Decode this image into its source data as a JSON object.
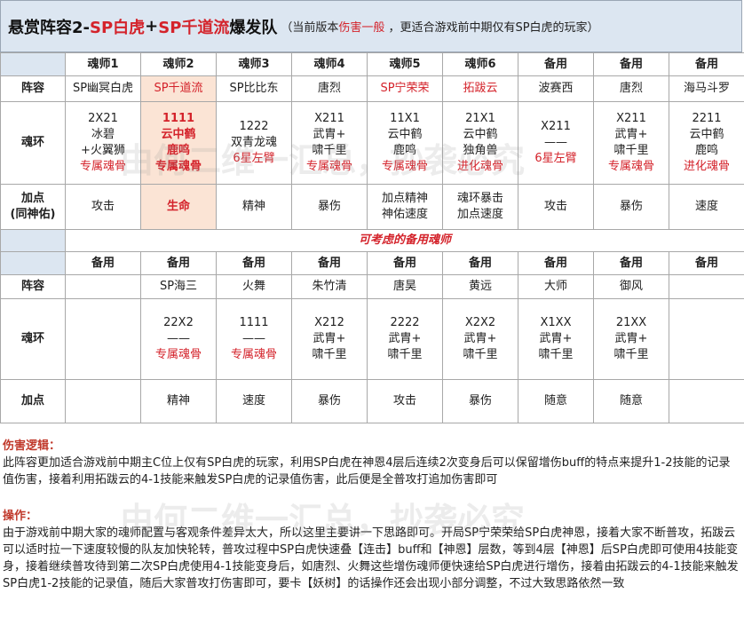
{
  "title": {
    "prefix": "悬赏阵容2-",
    "red1": "SP白虎",
    "plus": "+",
    "red2": "SP千道流",
    "suffix": "爆发队",
    "note_start": "（当前版本",
    "note_red": "伤害一般",
    "note_end": "，更适合游戏前中期仅有SP白虎的玩家）"
  },
  "row_labels": {
    "lineup": "阵容",
    "rings": "魂环",
    "points_line1": "加点",
    "points_line2": "(同神佑)",
    "points": "加点"
  },
  "top_headers": [
    "魂师1",
    "魂师2",
    "魂师3",
    "魂师4",
    "魂师5",
    "魂师6",
    "备用",
    "备用",
    "备用"
  ],
  "top_lineup": [
    "SP幽冥白虎",
    "SP千道流",
    "SP比比东",
    "唐烈",
    "SP宁荣荣",
    "拓跋云",
    "波赛西",
    "唐烈",
    "海马斗罗"
  ],
  "top_rings": [
    [
      "2X21",
      "冰碧",
      "+火翼狮",
      "专属魂骨"
    ],
    [
      "1111",
      "云中鹤",
      "鹿鸣",
      "专属魂骨"
    ],
    [
      "1222",
      "双青龙魂",
      "6星左臂"
    ],
    [
      "X211",
      "武胄+",
      "啸千里",
      "专属魂骨"
    ],
    [
      "11X1",
      "云中鹤",
      "鹿鸣",
      "专属魂骨"
    ],
    [
      "21X1",
      "云中鹤",
      "独角兽",
      "进化魂骨"
    ],
    [
      "X211",
      "——",
      "6星左臂"
    ],
    [
      "X211",
      "武胄+",
      "啸千里",
      "专属魂骨"
    ],
    [
      "2211",
      "云中鹤",
      "鹿鸣",
      "进化魂骨"
    ]
  ],
  "top_points": [
    [
      "攻击"
    ],
    [
      "生命"
    ],
    [
      "精神"
    ],
    [
      "暴伤"
    ],
    [
      "加点精神",
      "神佑速度"
    ],
    [
      "魂环暴击",
      "加点速度"
    ],
    [
      "攻击"
    ],
    [
      "暴伤"
    ],
    [
      "速度"
    ]
  ],
  "backup_title": "可考虑的备用魂师",
  "backup_headers": [
    "备用",
    "备用",
    "备用",
    "备用",
    "备用",
    "备用",
    "备用",
    "备用",
    "备用"
  ],
  "backup_lineup": [
    "",
    "SP海三",
    "火舞",
    "朱竹清",
    "唐昊",
    "黄远",
    "大师",
    "御风",
    ""
  ],
  "backup_rings": [
    [],
    [
      "22X2",
      "——",
      "专属魂骨"
    ],
    [
      "1111",
      "——",
      "专属魂骨"
    ],
    [
      "X212",
      "武胄+",
      "啸千里"
    ],
    [
      "2222",
      "武胄+",
      "啸千里"
    ],
    [
      "X2X2",
      "武胄+",
      "啸千里"
    ],
    [
      "X1XX",
      "武胄+",
      "啸千里"
    ],
    [
      "21XX",
      "武胄+",
      "啸千里"
    ],
    []
  ],
  "backup_points": [
    "",
    "精神",
    "速度",
    "暴伤",
    "攻击",
    "暴伤",
    "随意",
    "随意",
    ""
  ],
  "damage_logic": {
    "heading": "伤害逻辑：",
    "text": "此阵容更加适合游戏前中期主C位上仅有SP白虎的玩家，利用SP白虎在神恩4层后连续2次变身后可以保留增伤buff的特点来提升1-2技能的记录值伤害，接着利用拓跋云的4-1技能来触发SP白虎的记录值伤害，此后便是全普攻打追加伤害即可"
  },
  "operation": {
    "heading": "操作：",
    "text": "由于游戏前中期大家的魂师配置与客观条件差异太大，所以这里主要讲一下思路即可。开局SP宁荣荣给SP白虎神恩，接着大家不断普攻，拓跋云可以适时拉一下速度较慢的队友加快轮转，普攻过程中SP白虎快速叠【连击】buff和【神恩】层数，等到4层【神恩】后SP白虎即可使用4技能变身，接着继续普攻待到第二次SP白虎使用4-1技能变身后，如唐烈、火舞这些增伤魂师便快速给SP白虎进行增伤，接着由拓跋云的4-1技能来触发SP白虎1-2技能的记录值，随后大家普攻打伤害即可，要卡【妖树】的话操作还会出现小部分调整，不过大致思路依然一致"
  },
  "watermark": "由何二维一汇总，抄袭必究"
}
